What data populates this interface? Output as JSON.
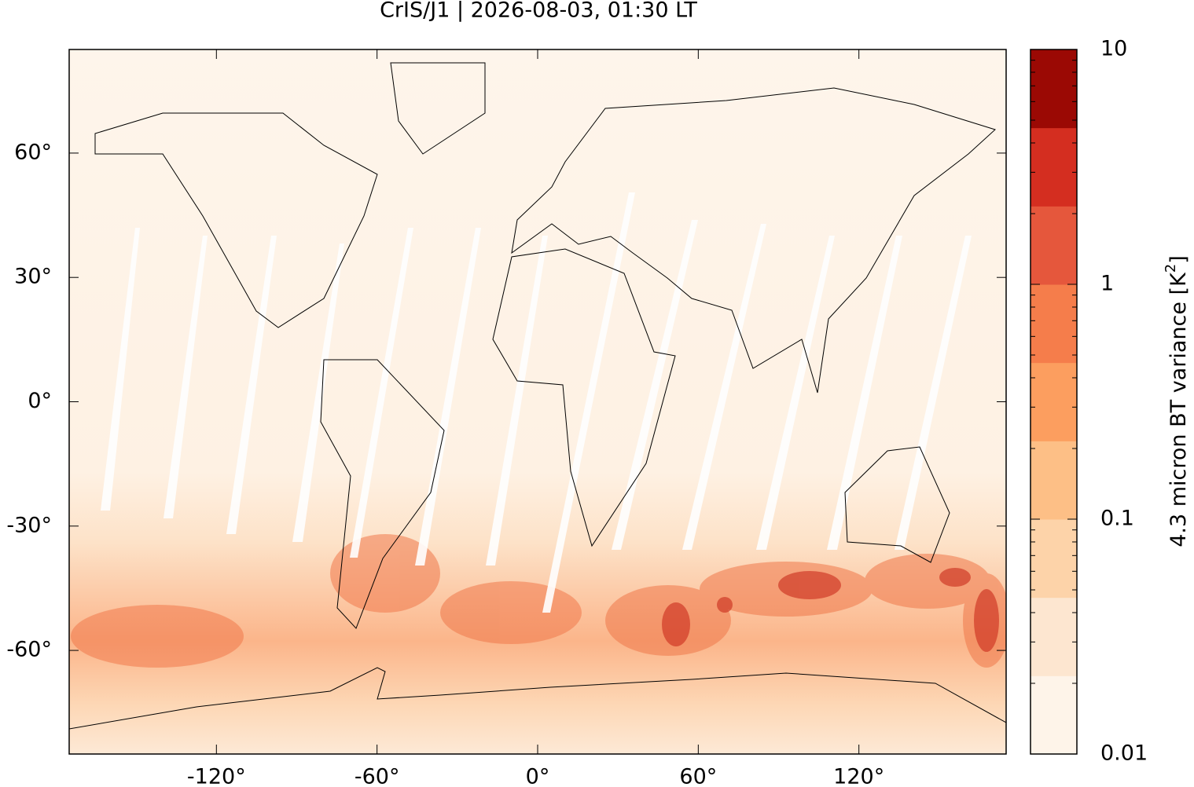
{
  "chart_data": {
    "type": "map",
    "title": "CrIS/J1 | 2026-08-03, 01:30 LT",
    "xlim": [
      -175,
      175
    ],
    "ylim": [
      -85,
      85
    ],
    "xticks": [
      {
        "value": -120,
        "label": "-120°"
      },
      {
        "value": -60,
        "label": "-60°"
      },
      {
        "value": 0,
        "label": "0°"
      },
      {
        "value": 60,
        "label": "60°"
      },
      {
        "value": 120,
        "label": "120°"
      }
    ],
    "yticks": [
      {
        "value": -60,
        "label": "-60°"
      },
      {
        "value": -30,
        "label": "-30°"
      },
      {
        "value": 0,
        "label": "0°"
      },
      {
        "value": 30,
        "label": "30°"
      },
      {
        "value": 60,
        "label": "60°"
      }
    ],
    "colorbar": {
      "label": [
        "4.3 micron BT variance [K",
        "2",
        "]"
      ],
      "log": true,
      "lim": [
        0.01,
        10
      ],
      "ticks": [
        0.01,
        0.1,
        1,
        10
      ],
      "colors": [
        "#fef4e9",
        "#fde6d0",
        "#fdd3a9",
        "#fdbf86",
        "#fc9e5f",
        "#f57d4b",
        "#e5573c",
        "#d42e20",
        "#9b0904"
      ]
    }
  }
}
